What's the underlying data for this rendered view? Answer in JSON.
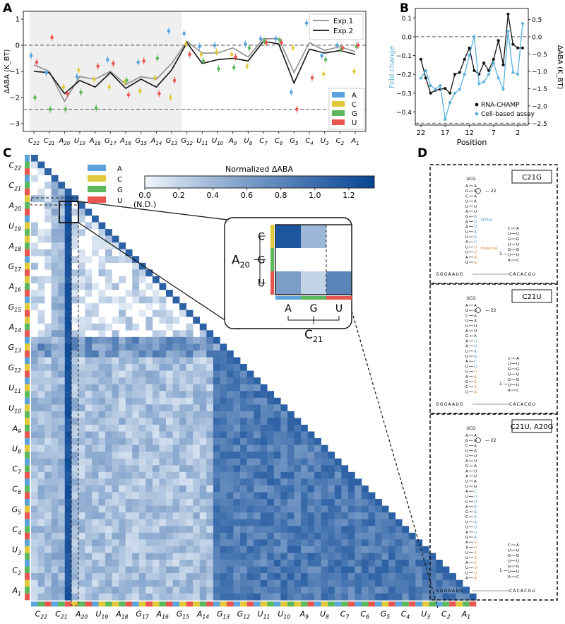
{
  "panels": {
    "A": {
      "letter": "A"
    },
    "B": {
      "letter": "B"
    },
    "C": {
      "letter": "C"
    },
    "D": {
      "letter": "D"
    }
  },
  "nucleotide_colors": {
    "A": "#5aa3dc",
    "C": "#e2c93a",
    "G": "#5cb85c",
    "U": "#e8564f"
  },
  "chart_data": [
    {
      "id": "A",
      "type": "line",
      "ylabel": "ΔABA (K_BT)",
      "ylim": [
        -3.3,
        1.3
      ],
      "yticks": [
        -3,
        -2,
        -1,
        0,
        1
      ],
      "ref_lines": [
        0,
        -2.45
      ],
      "positions": [
        "C22",
        "C21",
        "A20",
        "U19",
        "A18",
        "G17",
        "A16",
        "G15",
        "A14",
        "G13",
        "G12",
        "U11",
        "U10",
        "A9",
        "U8",
        "C7",
        "C6",
        "G5",
        "C4",
        "U3",
        "C2",
        "A1"
      ],
      "x_tick_labels": [
        {
          "b": "C",
          "s": "22"
        },
        {
          "b": "C",
          "s": "21"
        },
        {
          "b": "A",
          "s": "20"
        },
        {
          "b": "U",
          "s": "19"
        },
        {
          "b": "A",
          "s": "18"
        },
        {
          "b": "G",
          "s": "17"
        },
        {
          "b": "A",
          "s": "16"
        },
        {
          "b": "G",
          "s": "15"
        },
        {
          "b": "A",
          "s": "14"
        },
        {
          "b": "G",
          "s": "13"
        },
        {
          "b": "G",
          "s": "12"
        },
        {
          "b": "U",
          "s": "11"
        },
        {
          "b": "U",
          "s": "10"
        },
        {
          "b": "A",
          "s": "9"
        },
        {
          "b": "U",
          "s": "8"
        },
        {
          "b": "C",
          "s": "7"
        },
        {
          "b": "C",
          "s": "6"
        },
        {
          "b": "G",
          "s": "5"
        },
        {
          "b": "C",
          "s": "4"
        },
        {
          "b": "U",
          "s": "3"
        },
        {
          "b": "C",
          "s": "2"
        },
        {
          "b": "A",
          "s": "1"
        }
      ],
      "shaded_range": [
        "C22",
        "G13"
      ],
      "series": [
        {
          "name": "Exp.1",
          "color": "#8c8c8c",
          "values": [
            -0.75,
            -1.0,
            -2.15,
            -1.2,
            -1.3,
            -1.0,
            -1.5,
            -1.2,
            -1.3,
            -0.7,
            0.15,
            -0.3,
            -0.3,
            -0.1,
            -0.45,
            0.25,
            0.25,
            -1.05,
            0.1,
            -0.2,
            -0.05,
            -0.25
          ]
        },
        {
          "name": "Exp.2",
          "color": "#111111",
          "values": [
            -1.0,
            -1.05,
            -1.85,
            -1.35,
            -1.6,
            -1.05,
            -1.65,
            -1.3,
            -1.6,
            -0.95,
            0.1,
            -0.7,
            -0.55,
            -0.5,
            -0.6,
            0.15,
            0.05,
            -1.45,
            -0.15,
            -0.3,
            -0.2,
            -0.35
          ]
        }
      ],
      "points": [
        {
          "pos": "C22",
          "A": -0.4,
          "G": -2.0,
          "U": -0.65
        },
        {
          "pos": "C21",
          "A": -1.05,
          "G": -2.45,
          "U": 0.3
        },
        {
          "pos": "A20",
          "C": -1.6,
          "G": -2.45,
          "U": -1.85
        },
        {
          "pos": "U19",
          "A": -1.2,
          "C": -0.95,
          "G": -1.8
        },
        {
          "pos": "A18",
          "C": -1.3,
          "G": -2.4,
          "U": -0.8
        },
        {
          "pos": "G17",
          "A": -0.55,
          "C": -1.6,
          "U": -0.7
        },
        {
          "pos": "A16",
          "C": -1.4,
          "G": -1.35,
          "U": -1.9
        },
        {
          "pos": "G15",
          "A": -0.65,
          "C": -1.75,
          "U": -0.6
        },
        {
          "pos": "A14",
          "C": -1.25,
          "G": -0.5,
          "U": -1.85
        },
        {
          "pos": "G13",
          "A": 0.55,
          "C": -2.0,
          "U": -1.35
        },
        {
          "pos": "G12",
          "A": 0.45,
          "C": 0.05,
          "U": -0.35
        },
        {
          "pos": "U11",
          "A": -0.05,
          "C": -0.35,
          "G": -0.6
        },
        {
          "pos": "U10",
          "A": 0.0,
          "C": -0.25,
          "G": -0.9
        },
        {
          "pos": "A9",
          "C": -0.35,
          "G": -0.85,
          "U": -0.45
        },
        {
          "pos": "U8",
          "A": 0.05,
          "C": -0.8,
          "G": -0.1
        },
        {
          "pos": "C7",
          "A": 0.25,
          "G": 0.15,
          "U": 0.1
        },
        {
          "pos": "C6",
          "A": 0.25,
          "G": 0.2,
          "U": 0.1
        },
        {
          "pos": "G5",
          "A": -1.8,
          "C": -0.1,
          "U": -2.45
        },
        {
          "pos": "C4",
          "A": 0.85,
          "G": 0.5,
          "U": -1.25
        },
        {
          "pos": "U3",
          "A": -0.4,
          "C": -1.1,
          "G": -0.55
        },
        {
          "pos": "C2",
          "A": 0.0,
          "G": -0.15,
          "U": -0.1
        },
        {
          "pos": "A1",
          "C": -1.0,
          "G": -0.05,
          "U": 0.0
        }
      ],
      "legend_nts": [
        "A",
        "C",
        "G",
        "U"
      ]
    },
    {
      "id": "B",
      "type": "line",
      "xlabel": "Position",
      "ylabel_left": "Fold change",
      "ylabel_right": "ΔABA (K_BT)",
      "xticks": [
        22,
        17,
        12,
        7,
        2
      ],
      "yticks_left": [
        0.1,
        0.0,
        -0.1,
        -0.2,
        -0.3,
        -0.4
      ],
      "yticks_right": [
        0.5,
        0.0,
        -0.5,
        -1.0,
        -1.5,
        -2.0,
        -2.5
      ],
      "ylim_left": [
        -0.47,
        0.15
      ],
      "series": [
        {
          "name": "RNA-CHAMP",
          "color": "#111111",
          "x": [
            22,
            21,
            20,
            19,
            18,
            17,
            16,
            15,
            14,
            13,
            12,
            11,
            10,
            9,
            8,
            7,
            6,
            5,
            4,
            3,
            2,
            1
          ],
          "values": [
            -0.12,
            -0.22,
            -0.3,
            -0.285,
            -0.28,
            -0.275,
            -0.3,
            -0.2,
            -0.19,
            -0.12,
            -0.06,
            -0.18,
            -0.2,
            -0.14,
            -0.18,
            -0.12,
            -0.02,
            -0.15,
            0.12,
            -0.04,
            -0.06,
            -0.06
          ]
        },
        {
          "name": "Cell-based assay",
          "color": "#5ab0dc",
          "x": [
            22,
            21,
            20,
            19,
            18,
            17,
            16,
            15,
            14,
            13,
            12,
            11,
            10,
            9,
            8,
            7,
            6,
            5,
            4,
            3,
            2,
            1
          ],
          "values": [
            -0.22,
            -0.18,
            -0.26,
            -0.28,
            -0.26,
            -0.44,
            -0.35,
            -0.3,
            -0.28,
            -0.2,
            -0.1,
            0.0,
            -0.25,
            -0.24,
            -0.2,
            -0.14,
            -0.22,
            -0.28,
            0.03,
            -0.19,
            -0.2,
            0.07
          ]
        }
      ],
      "ref_lines_left": [
        0.0,
        -0.46
      ]
    },
    {
      "id": "C",
      "type": "heatmap",
      "colorbar_title": "Normalized ΔABA",
      "colorbar_ticks": [
        "0.0",
        "0.2",
        "0.4",
        "0.6",
        "0.8",
        "1.0",
        "1.2"
      ],
      "colorbar_nd": "(N.D.)",
      "legend_nts": [
        "A",
        "C",
        "G",
        "U"
      ],
      "positions": [
        "C22",
        "C21",
        "A20",
        "U19",
        "A18",
        "G17",
        "A16",
        "G15",
        "A14",
        "G13",
        "G12",
        "U11",
        "U10",
        "A9",
        "U8",
        "C7",
        "C6",
        "G5",
        "C4",
        "U3",
        "C2",
        "A1"
      ],
      "inset": {
        "row_label_base": "A",
        "row_label_sub": "20",
        "col_label_base": "C",
        "col_label_sub": "21",
        "row_nts": [
          "C",
          "G",
          "U"
        ],
        "col_nts": [
          "A",
          "G",
          "U"
        ],
        "values": [
          [
            1.2,
            0.4,
            0
          ],
          [
            0,
            0,
            0
          ],
          [
            0.6,
            0.2,
            0.8
          ]
        ]
      }
    }
  ],
  "panel_D": {
    "structures": [
      {
        "label": "C21G",
        "distal": "Distal",
        "proximal": "Proximal",
        "pos22": "22",
        "pos1": "1",
        "seq5": "GGGAAUG",
        "seq3": "CACACGU",
        "loop": "UCG"
      },
      {
        "label": "C21U",
        "pos22": "22",
        "pos1": "1",
        "seq5": "GGGAAUG",
        "seq3": "CACACGU",
        "loop": "UCG"
      },
      {
        "label": "C21U, A20G",
        "pos22": "22",
        "pos1": "1",
        "seq5": "GGGAAUG",
        "seq3": "CACACGU",
        "loop": "UCG"
      }
    ]
  }
}
